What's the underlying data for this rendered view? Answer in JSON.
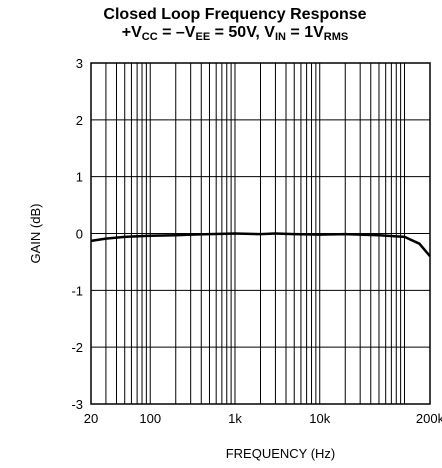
{
  "title_line1": "Closed Loop Frequency Response",
  "title_line2": {
    "prefix": "+V",
    "sub1": "CC",
    "mid1": " = –V",
    "sub2": "EE",
    "mid2": " = 50V, V",
    "sub3": "IN",
    "mid3": " = 1V",
    "sub4": "RMS"
  },
  "chart_data": {
    "type": "line",
    "xlabel": "FREQUENCY (Hz)",
    "ylabel": "GAIN (dB)",
    "xscale": "log",
    "xlim": [
      20,
      200000
    ],
    "ylim": [
      -3,
      3
    ],
    "grid": true,
    "xticks": [
      {
        "value": 20,
        "label": "20"
      },
      {
        "value": 100,
        "label": "100"
      },
      {
        "value": 1000,
        "label": "1k"
      },
      {
        "value": 10000,
        "label": "10k"
      },
      {
        "value": 200000,
        "label": "200k"
      }
    ],
    "yticks": [
      {
        "value": 3,
        "label": "3"
      },
      {
        "value": 2,
        "label": "2"
      },
      {
        "value": 1,
        "label": "1"
      },
      {
        "value": 0,
        "label": "0"
      },
      {
        "value": -1,
        "label": "-1"
      },
      {
        "value": -2,
        "label": "-2"
      },
      {
        "value": -3,
        "label": "-3"
      }
    ],
    "series": [
      {
        "x": [
          20,
          30,
          50,
          100,
          200,
          300,
          500,
          1000,
          2000,
          3000,
          5000,
          10000,
          20000,
          30000,
          50000,
          100000,
          150000,
          200000
        ],
        "y": [
          -0.13,
          -0.09,
          -0.06,
          -0.04,
          -0.03,
          -0.02,
          -0.01,
          0.0,
          -0.01,
          0.0,
          -0.01,
          -0.02,
          -0.01,
          -0.02,
          -0.03,
          -0.06,
          -0.18,
          -0.4
        ]
      }
    ]
  }
}
